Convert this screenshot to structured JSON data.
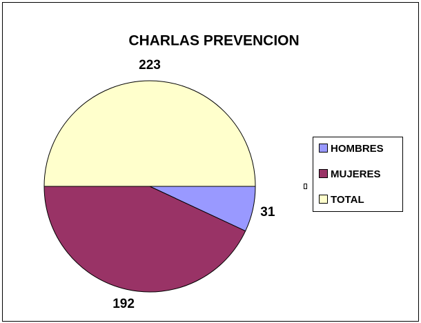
{
  "chart_data": {
    "type": "pie",
    "title": "CHARLAS PREVENCION",
    "categories": [
      "HOMBRES",
      "MUJERES",
      "TOTAL"
    ],
    "values": [
      31,
      192,
      223
    ],
    "colors": [
      "#9999ff",
      "#993366",
      "#ffffcc"
    ],
    "legend": "right"
  }
}
